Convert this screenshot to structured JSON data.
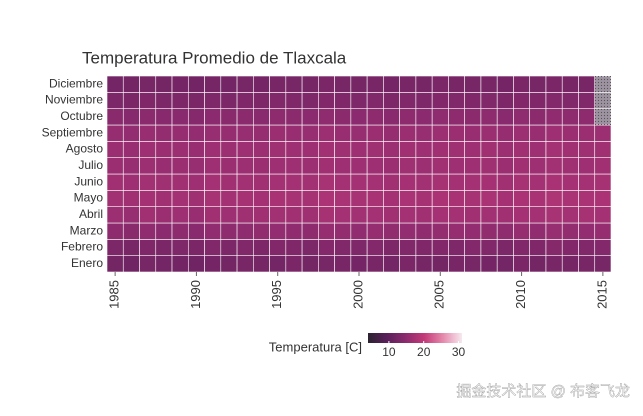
{
  "chart_data": {
    "type": "heatmap",
    "title": "Temperatura Promedio de Tlaxcala",
    "x": [
      1985,
      1986,
      1987,
      1988,
      1989,
      1990,
      1991,
      1992,
      1993,
      1994,
      1995,
      1996,
      1997,
      1998,
      1999,
      2000,
      2001,
      2002,
      2003,
      2004,
      2005,
      2006,
      2007,
      2008,
      2009,
      2010,
      2011,
      2012,
      2013,
      2014,
      2015
    ],
    "xlim": [
      1984.5,
      2015.5
    ],
    "xticks": [
      1985,
      1990,
      1995,
      2000,
      2005,
      2010,
      2015
    ],
    "y": [
      "Enero",
      "Febrero",
      "Marzo",
      "Abril",
      "Mayo",
      "Junio",
      "Julio",
      "Agosto",
      "Septiembre",
      "Octubre",
      "Noviembre",
      "Diciembre"
    ],
    "z": [
      [
        12.1,
        11.8,
        12.6,
        12.3,
        12.0,
        11.9,
        12.4,
        12.2,
        12.7,
        12.5,
        12.3,
        12.9,
        12.1,
        12.6,
        12.8,
        12.4,
        12.7,
        12.3,
        12.9,
        12.5,
        12.2,
        12.8,
        12.6,
        12.4,
        12.3,
        12.9,
        12.2,
        12.7,
        12.5,
        12.8,
        12.6
      ],
      [
        13.2,
        12.8,
        13.5,
        13.0,
        13.4,
        12.9,
        13.6,
        13.1,
        13.7,
        13.3,
        13.8,
        13.5,
        13.2,
        14.0,
        13.6,
        13.4,
        13.9,
        13.3,
        13.7,
        13.5,
        13.8,
        13.4,
        13.9,
        13.6,
        13.2,
        13.7,
        13.5,
        14.1,
        13.8,
        13.6,
        13.9
      ],
      [
        15.0,
        14.6,
        15.3,
        14.8,
        15.1,
        14.7,
        15.5,
        15.0,
        15.2,
        15.4,
        15.6,
        15.3,
        15.1,
        15.9,
        15.7,
        15.5,
        15.8,
        15.4,
        15.6,
        15.3,
        15.7,
        15.9,
        15.6,
        15.4,
        15.2,
        15.8,
        15.5,
        16.0,
        15.7,
        15.6,
        15.9
      ],
      [
        16.4,
        16.0,
        16.8,
        16.2,
        16.5,
        16.1,
        16.9,
        16.6,
        16.7,
        16.8,
        17.0,
        16.9,
        16.7,
        17.4,
        17.2,
        17.0,
        17.1,
        16.8,
        17.2,
        16.9,
        17.3,
        17.1,
        16.9,
        17.0,
        16.8,
        17.3,
        17.2,
        17.5,
        17.1,
        17.4,
        17.2
      ],
      [
        17.0,
        16.8,
        17.3,
        16.9,
        17.2,
        16.7,
        17.5,
        17.1,
        17.4,
        17.3,
        17.6,
        17.5,
        17.4,
        18.0,
        17.7,
        17.5,
        17.6,
        17.3,
        17.8,
        17.4,
        17.9,
        17.6,
        17.5,
        17.7,
        17.3,
        17.9,
        17.6,
        18.1,
        17.8,
        17.7,
        17.9
      ],
      [
        16.8,
        16.6,
        17.0,
        16.7,
        16.9,
        16.5,
        17.1,
        16.8,
        17.0,
        16.9,
        17.2,
        17.1,
        17.0,
        17.5,
        17.2,
        17.1,
        17.2,
        16.9,
        17.3,
        17.0,
        17.4,
        17.2,
        17.1,
        17.3,
        16.9,
        17.4,
        17.1,
        17.6,
        17.3,
        17.2,
        17.4
      ],
      [
        16.2,
        16.0,
        16.4,
        16.1,
        16.3,
        16.0,
        16.5,
        16.3,
        16.4,
        16.3,
        16.6,
        16.5,
        16.4,
        16.9,
        16.6,
        16.5,
        16.6,
        16.3,
        16.7,
        16.4,
        16.8,
        16.6,
        16.5,
        16.7,
        16.3,
        16.8,
        16.5,
        17.0,
        16.7,
        16.6,
        16.8
      ],
      [
        16.3,
        16.1,
        16.5,
        16.2,
        16.4,
        16.1,
        16.6,
        16.4,
        16.5,
        16.4,
        16.7,
        16.6,
        16.5,
        17.0,
        16.7,
        16.6,
        16.7,
        16.4,
        16.8,
        16.5,
        16.9,
        16.7,
        16.6,
        16.8,
        16.4,
        16.9,
        16.6,
        17.1,
        16.8,
        16.7,
        16.9
      ],
      [
        15.8,
        15.6,
        16.1,
        15.7,
        15.9,
        15.6,
        16.0,
        15.8,
        16.0,
        15.9,
        16.2,
        16.1,
        16.0,
        16.4,
        16.1,
        16.0,
        16.2,
        15.9,
        16.3,
        16.0,
        16.4,
        16.2,
        16.1,
        16.3,
        15.9,
        16.4,
        16.1,
        16.5,
        16.3,
        16.2,
        16.4
      ],
      [
        14.6,
        14.4,
        14.9,
        14.5,
        14.7,
        14.3,
        14.8,
        14.6,
        14.9,
        14.7,
        15.0,
        14.9,
        14.8,
        15.2,
        14.9,
        14.8,
        15.0,
        14.7,
        15.1,
        14.8,
        15.2,
        15.0,
        14.9,
        15.1,
        14.7,
        15.2,
        14.9,
        15.3,
        15.1,
        15.0,
        null
      ],
      [
        13.2,
        13.0,
        13.5,
        13.1,
        13.3,
        12.9,
        13.4,
        13.2,
        13.5,
        13.3,
        13.6,
        13.5,
        13.4,
        13.8,
        13.5,
        13.4,
        13.6,
        13.3,
        13.7,
        13.4,
        13.8,
        13.6,
        13.5,
        13.7,
        13.3,
        13.8,
        13.5,
        13.9,
        13.7,
        13.6,
        null
      ],
      [
        12.3,
        12.1,
        12.6,
        12.2,
        12.4,
        12.0,
        12.5,
        12.3,
        12.6,
        12.4,
        12.7,
        12.6,
        12.5,
        12.9,
        12.6,
        12.5,
        12.7,
        12.4,
        12.8,
        12.5,
        12.9,
        12.7,
        12.6,
        12.8,
        12.4,
        12.9,
        12.6,
        13.0,
        12.8,
        12.7,
        null
      ]
    ],
    "zlim": [
      4,
      31
    ],
    "colorscale": [
      "#2b2430",
      "#5a1f5a",
      "#8b2a6e",
      "#c33a7a",
      "#e58aad",
      "#f7e8ef"
    ],
    "na_color": "#9d929f",
    "legend_title": "Temperatura [C]",
    "legend_ticks": [
      10,
      20,
      30
    ],
    "watermark": "掘金技术社区 @ 布客飞龙"
  }
}
